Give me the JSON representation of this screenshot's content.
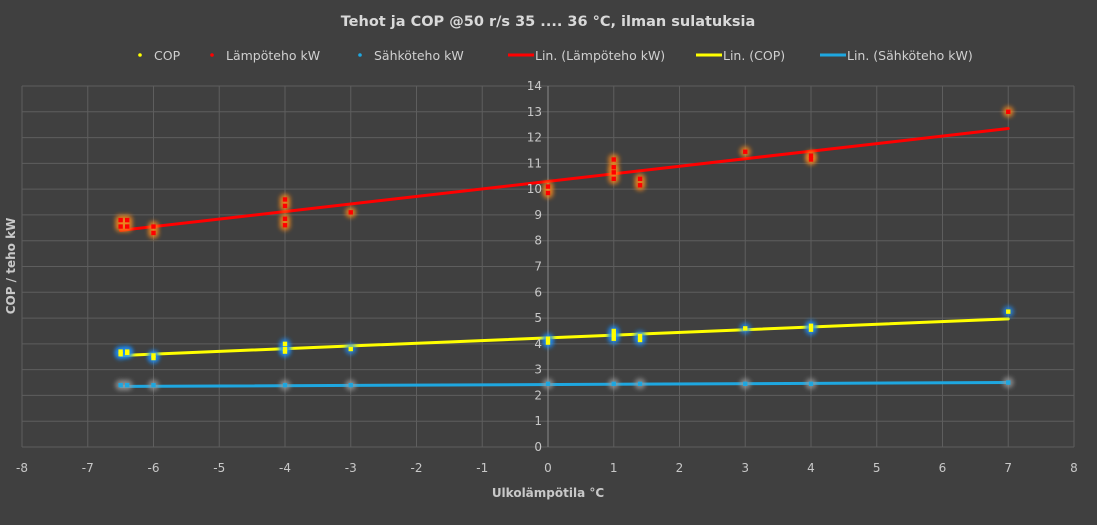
{
  "chart_data": {
    "type": "scatter",
    "title": "Tehot ja COP @50 r/s  35 .... 36 °C, ilman sulatuksia",
    "xlabel": "Ulkolämpötila °C",
    "ylabel": "COP   /  teho kW",
    "xlim": [
      -8,
      8
    ],
    "ylim": [
      0,
      14
    ],
    "x_ticks": [
      "-8",
      "-7",
      "-6",
      "-5",
      "-4",
      "-3",
      "-2",
      "-1",
      "0",
      "1",
      "2",
      "3",
      "4",
      "5",
      "6",
      "7",
      "8"
    ],
    "y_ticks": [
      "0",
      "1",
      "2",
      "3",
      "4",
      "5",
      "6",
      "7",
      "8",
      "9",
      "10",
      "11",
      "12",
      "13",
      "14"
    ],
    "grid": true,
    "legend_position": "top",
    "legend": [
      {
        "label": "COP",
        "kind": "marker",
        "color": "#ffff00"
      },
      {
        "label": "Lämpöteho kW",
        "kind": "marker",
        "color": "#ff0000"
      },
      {
        "label": "Sähköteho kW",
        "kind": "marker",
        "color": "#1ea7e0"
      },
      {
        "label": "Lin. (Lämpöteho kW)",
        "kind": "line",
        "color": "#ff0000"
      },
      {
        "label": "Lin. (COP)",
        "kind": "line",
        "color": "#ffff00"
      },
      {
        "label": "Lin. (Sähköteho kW)",
        "kind": "line",
        "color": "#1ea7e0"
      }
    ],
    "series": [
      {
        "name": "COP",
        "color": "#ffff00",
        "glow": "#1e90ff",
        "points": [
          [
            -6.5,
            3.7
          ],
          [
            -6.4,
            3.7
          ],
          [
            -6.5,
            3.6
          ],
          [
            -6.4,
            3.65
          ],
          [
            -6.0,
            3.55
          ],
          [
            -6.0,
            3.45
          ],
          [
            -4.0,
            4.0
          ],
          [
            -4.0,
            3.8
          ],
          [
            -4.0,
            3.7
          ],
          [
            -3.0,
            3.8
          ],
          [
            0.0,
            4.2
          ],
          [
            0.0,
            4.05
          ],
          [
            1.0,
            4.5
          ],
          [
            1.0,
            4.35
          ],
          [
            1.0,
            4.2
          ],
          [
            1.4,
            4.3
          ],
          [
            1.4,
            4.15
          ],
          [
            3.0,
            4.6
          ],
          [
            4.0,
            4.7
          ],
          [
            4.0,
            4.55
          ],
          [
            7.0,
            5.25
          ]
        ]
      },
      {
        "name": "Lämpöteho kW",
        "color": "#ff0000",
        "glow": "#ff8c1a",
        "points": [
          [
            -6.5,
            8.8
          ],
          [
            -6.4,
            8.8
          ],
          [
            -6.5,
            8.55
          ],
          [
            -6.4,
            8.55
          ],
          [
            -6.0,
            8.55
          ],
          [
            -6.0,
            8.3
          ],
          [
            -4.0,
            9.6
          ],
          [
            -4.0,
            9.35
          ],
          [
            -4.0,
            8.85
          ],
          [
            -4.0,
            8.6
          ],
          [
            -3.0,
            9.1
          ],
          [
            0.0,
            10.1
          ],
          [
            0.0,
            9.85
          ],
          [
            1.0,
            11.15
          ],
          [
            1.0,
            10.85
          ],
          [
            1.0,
            10.65
          ],
          [
            1.0,
            10.4
          ],
          [
            1.4,
            10.4
          ],
          [
            1.4,
            10.15
          ],
          [
            3.0,
            11.45
          ],
          [
            4.0,
            11.3
          ],
          [
            4.0,
            11.15
          ],
          [
            7.0,
            13.0
          ]
        ]
      },
      {
        "name": "Sähköteho kW",
        "color": "#1ea7e0",
        "glow": "#9a9a9a",
        "points": [
          [
            -6.5,
            2.4
          ],
          [
            -6.4,
            2.4
          ],
          [
            -6.0,
            2.4
          ],
          [
            -4.0,
            2.4
          ],
          [
            -3.0,
            2.4
          ],
          [
            0.0,
            2.45
          ],
          [
            1.0,
            2.45
          ],
          [
            1.4,
            2.45
          ],
          [
            3.0,
            2.45
          ],
          [
            4.0,
            2.45
          ],
          [
            7.0,
            2.5
          ]
        ]
      }
    ],
    "trendlines": [
      {
        "name": "Lin. (Lämpöteho kW)",
        "color": "#ff0000",
        "x": [
          -6.5,
          7.0
        ],
        "y": [
          8.4,
          12.35
        ]
      },
      {
        "name": "Lin. (COP)",
        "color": "#ffff00",
        "x": [
          -6.5,
          7.0
        ],
        "y": [
          3.55,
          4.97
        ]
      },
      {
        "name": "Lin. (Sähköteho kW)",
        "color": "#1ea7e0",
        "x": [
          -6.5,
          7.0
        ],
        "y": [
          2.35,
          2.5
        ]
      }
    ]
  }
}
